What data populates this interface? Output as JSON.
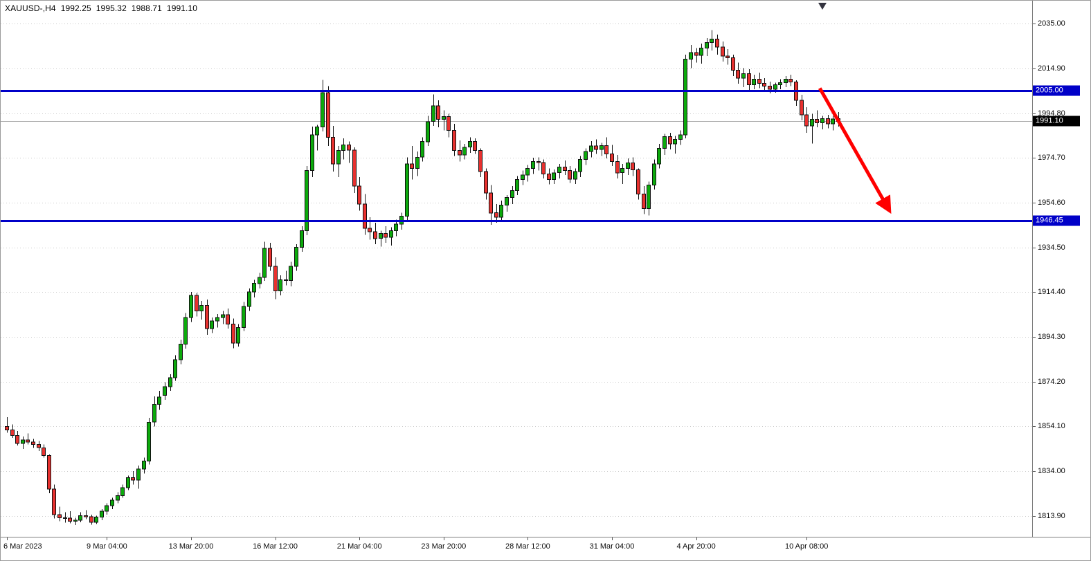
{
  "header": {
    "symbol_timeframe": "XAUUSD-,H4",
    "open": "1992.25",
    "high": "1995.32",
    "low": "1988.71",
    "close": "1991.10"
  },
  "colors": {
    "bull": "#0caa0c",
    "bear": "#e8312f",
    "outline": "#111111",
    "grid": "#c9c9c9",
    "level_line": "#0000c8",
    "level_tag_bg": "#0000c8",
    "current_line": "#a9a9a9",
    "current_tag_bg": "#000000",
    "arrow": "#ff0000",
    "axis_text": "#0a0a0a"
  },
  "chart_data": {
    "type": "candlestick",
    "symbol": "XAUUSD-",
    "timeframe": "H4",
    "title": "XAUUSD-,H4 1992.25 1995.32 1988.71 1991.10",
    "grid": "horizontal-dotted",
    "y_axis": {
      "ticks": [
        "2035.00",
        "2014.90",
        "1994.80",
        "1974.70",
        "1954.60",
        "1934.50",
        "1914.40",
        "1894.30",
        "1874.20",
        "1854.10",
        "1834.00",
        "1813.90"
      ],
      "ylim": [
        1804.5,
        2045.3
      ]
    },
    "x_axis": {
      "labels": [
        {
          "text": "6 Mar 2023",
          "index": 0
        },
        {
          "text": "9 Mar 04:00",
          "index": 19
        },
        {
          "text": "13 Mar 20:00",
          "index": 35
        },
        {
          "text": "16 Mar 12:00",
          "index": 51
        },
        {
          "text": "21 Mar 04:00",
          "index": 67
        },
        {
          "text": "23 Mar 20:00",
          "index": 83
        },
        {
          "text": "28 Mar 12:00",
          "index": 99
        },
        {
          "text": "31 Mar 04:00",
          "index": 115
        },
        {
          "text": "4 Apr 20:00",
          "index": 131
        },
        {
          "text": "10 Apr 08:00",
          "index": 152
        }
      ]
    },
    "levels": [
      {
        "price": 2005.0,
        "label": "2005.00"
      },
      {
        "price": 1946.45,
        "label": "1946.45"
      }
    ],
    "current_price": {
      "price": 1991.1,
      "label": "1991.10"
    },
    "arrow": {
      "from_index": 154.5,
      "from_price": 2006.0,
      "to_index": 167.5,
      "to_price": 1952.0
    },
    "candles": [
      [
        1854.0,
        1858.3,
        1851.2,
        1852.5
      ],
      [
        1852.5,
        1855.0,
        1849.0,
        1850.0
      ],
      [
        1850.0,
        1852.0,
        1845.5,
        1846.5
      ],
      [
        1846.5,
        1849.5,
        1844.0,
        1848.0
      ],
      [
        1848.0,
        1851.0,
        1846.0,
        1847.0
      ],
      [
        1847.0,
        1848.5,
        1844.5,
        1846.0
      ],
      [
        1846.0,
        1847.5,
        1843.0,
        1844.5
      ],
      [
        1844.5,
        1846.0,
        1840.0,
        1841.0
      ],
      [
        1841.0,
        1841.5,
        1824.0,
        1826.0
      ],
      [
        1826.0,
        1828.0,
        1812.7,
        1814.5
      ],
      [
        1814.5,
        1818.0,
        1811.5,
        1813.0
      ],
      [
        1813.0,
        1815.5,
        1810.8,
        1812.9
      ],
      [
        1812.9,
        1816.0,
        1810.5,
        1811.5
      ],
      [
        1811.5,
        1813.0,
        1809.8,
        1812.0
      ],
      [
        1812.0,
        1815.5,
        1811.0,
        1814.0
      ],
      [
        1814.0,
        1816.5,
        1812.5,
        1813.5
      ],
      [
        1813.5,
        1814.5,
        1810.0,
        1811.0
      ],
      [
        1811.0,
        1814.0,
        1810.2,
        1813.4
      ],
      [
        1813.4,
        1817.0,
        1812.0,
        1816.0
      ],
      [
        1816.0,
        1819.5,
        1814.5,
        1818.5
      ],
      [
        1818.5,
        1822.0,
        1817.0,
        1821.0
      ],
      [
        1821.0,
        1824.5,
        1819.5,
        1823.0
      ],
      [
        1823.0,
        1828.0,
        1822.0,
        1826.5
      ],
      [
        1826.5,
        1832.0,
        1825.5,
        1831.1
      ],
      [
        1831.1,
        1834.0,
        1828.0,
        1830.0
      ],
      [
        1830.0,
        1836.5,
        1826.1,
        1835.0
      ],
      [
        1835.0,
        1840.0,
        1833.0,
        1838.5
      ],
      [
        1838.5,
        1858.0,
        1837.0,
        1856.0
      ],
      [
        1856.0,
        1867.5,
        1854.0,
        1864.0
      ],
      [
        1864.0,
        1870.0,
        1861.5,
        1867.2
      ],
      [
        1868.0,
        1874.0,
        1866.0,
        1872.0
      ],
      [
        1872.0,
        1877.5,
        1870.0,
        1876.0
      ],
      [
        1876.0,
        1886.0,
        1874.5,
        1884.0
      ],
      [
        1884.0,
        1893.0,
        1882.0,
        1891.0
      ],
      [
        1891.0,
        1905.0,
        1889.0,
        1903.0
      ],
      [
        1903.0,
        1914.5,
        1901.0,
        1913.0
      ],
      [
        1913.0,
        1914.0,
        1903.5,
        1906.0
      ],
      [
        1906.0,
        1910.5,
        1902.0,
        1908.5
      ],
      [
        1908.5,
        1911.0,
        1895.2,
        1898.0
      ],
      [
        1898.0,
        1903.0,
        1896.0,
        1901.5
      ],
      [
        1901.5,
        1904.5,
        1898.5,
        1903.0
      ],
      [
        1903.0,
        1906.0,
        1900.0,
        1904.3
      ],
      [
        1904.3,
        1907.0,
        1898.0,
        1900.0
      ],
      [
        1900.0,
        1902.5,
        1889.1,
        1891.5
      ],
      [
        1891.5,
        1900.0,
        1890.0,
        1898.5
      ],
      [
        1898.5,
        1910.0,
        1897.0,
        1908.0
      ],
      [
        1908.0,
        1916.0,
        1906.0,
        1914.5
      ],
      [
        1914.5,
        1920.0,
        1912.0,
        1918.3
      ],
      [
        1918.3,
        1923.0,
        1916.0,
        1921.0
      ],
      [
        1921.0,
        1937.0,
        1919.5,
        1934.0
      ],
      [
        1934.0,
        1936.5,
        1924.0,
        1926.0
      ],
      [
        1926.0,
        1930.0,
        1911.2,
        1915.0
      ],
      [
        1915.0,
        1922.0,
        1913.0,
        1920.0
      ],
      [
        1920.0,
        1924.0,
        1917.5,
        1919.6
      ],
      [
        1919.6,
        1928.0,
        1917.0,
        1926.0
      ],
      [
        1926.0,
        1936.0,
        1924.0,
        1934.5
      ],
      [
        1934.5,
        1944.0,
        1932.5,
        1942.0
      ],
      [
        1942.0,
        1971.0,
        1940.0,
        1969.0
      ],
      [
        1969.0,
        1988.8,
        1966.0,
        1985.0
      ],
      [
        1985.0,
        1989.5,
        1978.0,
        1988.6
      ],
      [
        1988.6,
        2009.8,
        1986.5,
        2004.0
      ],
      [
        2004.0,
        2007.0,
        1980.0,
        1984.0
      ],
      [
        1984.0,
        1989.0,
        1968.5,
        1972.0
      ],
      [
        1972.0,
        1980.0,
        1966.1,
        1978.0
      ],
      [
        1978.0,
        1983.5,
        1974.0,
        1980.5
      ],
      [
        1980.5,
        1982.0,
        1972.5,
        1978.2
      ],
      [
        1978.2,
        1979.5,
        1959.0,
        1962.0
      ],
      [
        1962.0,
        1966.0,
        1951.0,
        1954.0
      ],
      [
        1954.0,
        1958.5,
        1940.2,
        1943.0
      ],
      [
        1943.0,
        1948.0,
        1938.0,
        1941.5
      ],
      [
        1941.5,
        1945.5,
        1936.0,
        1938.5
      ],
      [
        1938.5,
        1942.0,
        1934.8,
        1940.7
      ],
      [
        1940.7,
        1944.0,
        1936.5,
        1939.0
      ],
      [
        1939.0,
        1943.5,
        1935.3,
        1942.0
      ],
      [
        1942.0,
        1947.0,
        1939.5,
        1945.0
      ],
      [
        1945.0,
        1950.0,
        1942.5,
        1948.5
      ],
      [
        1948.5,
        1975.0,
        1946.0,
        1972.0
      ],
      [
        1972.0,
        1980.1,
        1965.0,
        1970.0
      ],
      [
        1970.0,
        1977.5,
        1966.5,
        1975.0
      ],
      [
        1975.0,
        1984.0,
        1973.0,
        1982.0
      ],
      [
        1982.0,
        1993.5,
        1980.0,
        1991.0
      ],
      [
        1991.0,
        2003.2,
        1989.0,
        1998.0
      ],
      [
        1998.0,
        2000.5,
        1988.5,
        1992.0
      ],
      [
        1992.0,
        1996.0,
        1987.0,
        1993.3
      ],
      [
        1993.3,
        1994.5,
        1984.0,
        1987.0
      ],
      [
        1987.0,
        1990.0,
        1975.5,
        1978.0
      ],
      [
        1978.0,
        1982.5,
        1973.0,
        1976.0
      ],
      [
        1976.0,
        1981.0,
        1974.0,
        1979.5
      ],
      [
        1979.5,
        1984.0,
        1977.0,
        1982.0
      ],
      [
        1982.0,
        1983.5,
        1976.5,
        1978.1
      ],
      [
        1978.1,
        1979.0,
        1966.0,
        1968.5
      ],
      [
        1968.5,
        1970.0,
        1956.0,
        1959.0
      ],
      [
        1959.0,
        1962.5,
        1944.6,
        1950.0
      ],
      [
        1950.0,
        1954.0,
        1945.5,
        1948.0
      ],
      [
        1948.0,
        1955.5,
        1946.5,
        1953.5
      ],
      [
        1953.5,
        1958.0,
        1950.5,
        1956.9
      ],
      [
        1956.9,
        1962.0,
        1954.0,
        1960.0
      ],
      [
        1960.0,
        1966.5,
        1958.0,
        1965.0
      ],
      [
        1965.0,
        1969.0,
        1962.5,
        1967.0
      ],
      [
        1967.0,
        1971.5,
        1964.0,
        1970.0
      ],
      [
        1970.0,
        1974.8,
        1967.5,
        1973.0
      ],
      [
        1973.0,
        1975.0,
        1969.0,
        1972.6
      ],
      [
        1972.6,
        1974.0,
        1965.5,
        1967.5
      ],
      [
        1967.5,
        1970.0,
        1962.8,
        1965.0
      ],
      [
        1965.0,
        1969.5,
        1963.0,
        1968.0
      ],
      [
        1968.0,
        1972.0,
        1965.5,
        1970.5
      ],
      [
        1970.5,
        1973.5,
        1967.0,
        1969.0
      ],
      [
        1969.0,
        1971.0,
        1963.5,
        1965.2
      ],
      [
        1965.2,
        1970.0,
        1963.0,
        1968.5
      ],
      [
        1968.5,
        1975.5,
        1966.0,
        1974.0
      ],
      [
        1974.0,
        1979.0,
        1971.5,
        1977.5
      ],
      [
        1977.5,
        1982.3,
        1975.0,
        1980.0
      ],
      [
        1980.0,
        1983.0,
        1976.5,
        1978.5
      ],
      [
        1978.5,
        1981.5,
        1975.5,
        1980.2
      ],
      [
        1980.2,
        1984.0,
        1974.5,
        1976.5
      ],
      [
        1976.5,
        1980.5,
        1971.0,
        1973.0
      ],
      [
        1973.0,
        1976.0,
        1965.5,
        1968.0
      ],
      [
        1968.0,
        1972.0,
        1963.0,
        1970.0
      ],
      [
        1970.0,
        1974.5,
        1967.0,
        1972.5
      ],
      [
        1972.5,
        1975.0,
        1966.5,
        1969.3
      ],
      [
        1969.3,
        1970.0,
        1956.0,
        1958.5
      ],
      [
        1958.5,
        1962.0,
        1949.5,
        1952.0
      ],
      [
        1952.0,
        1964.0,
        1948.8,
        1962.5
      ],
      [
        1962.5,
        1974.0,
        1960.5,
        1972.0
      ],
      [
        1972.0,
        1981.0,
        1970.0,
        1979.0
      ],
      [
        1979.0,
        1985.5,
        1976.0,
        1984.2
      ],
      [
        1984.2,
        1986.0,
        1978.5,
        1981.0
      ],
      [
        1981.0,
        1984.5,
        1976.7,
        1983.0
      ],
      [
        1983.0,
        1987.0,
        1980.5,
        1985.0
      ],
      [
        1985.0,
        2021.0,
        1983.5,
        2019.0
      ],
      [
        2019.0,
        2025.4,
        2015.0,
        2022.0
      ],
      [
        2022.0,
        2024.0,
        2017.5,
        2020.8
      ],
      [
        2020.8,
        2026.0,
        2017.0,
        2024.0
      ],
      [
        2024.0,
        2028.5,
        2020.5,
        2026.5
      ],
      [
        2026.5,
        2032.1,
        2023.0,
        2028.0
      ],
      [
        2028.0,
        2030.0,
        2021.0,
        2024.5
      ],
      [
        2024.5,
        2027.0,
        2018.0,
        2020.5
      ],
      [
        2020.5,
        2023.5,
        2016.5,
        2019.7
      ],
      [
        2019.7,
        2021.0,
        2011.5,
        2014.0
      ],
      [
        2014.0,
        2017.5,
        2008.0,
        2010.5
      ],
      [
        2010.5,
        2015.0,
        2006.5,
        2012.5
      ],
      [
        2012.5,
        2014.5,
        2004.8,
        2007.5
      ],
      [
        2007.5,
        2012.0,
        2005.5,
        2010.0
      ],
      [
        2010.0,
        2013.0,
        2006.0,
        2008.2
      ],
      [
        2008.2,
        2010.5,
        2005.0,
        2007.0
      ],
      [
        2007.0,
        2009.0,
        2003.7,
        2005.5
      ],
      [
        2005.5,
        2008.5,
        2004.0,
        2007.5
      ],
      [
        2007.5,
        2010.0,
        2005.5,
        2008.5
      ],
      [
        2008.5,
        2011.5,
        2006.5,
        2010.0
      ],
      [
        2010.0,
        2012.0,
        2007.0,
        2008.8
      ],
      [
        2008.8,
        2009.5,
        1998.0,
        2000.5
      ],
      [
        2000.5,
        2003.0,
        1991.5,
        1994.0
      ],
      [
        1994.0,
        1997.5,
        1986.0,
        1989.0
      ],
      [
        1989.0,
        1994.5,
        1981.2,
        1992.0
      ],
      [
        1992.0,
        1996.0,
        1988.5,
        1990.5
      ],
      [
        1990.5,
        1993.5,
        1987.5,
        1992.3
      ],
      [
        1992.3,
        1994.0,
        1988.0,
        1990.0
      ],
      [
        1990.0,
        1993.5,
        1987.0,
        1992.2
      ],
      [
        1992.25,
        1995.32,
        1988.71,
        1991.1
      ]
    ]
  }
}
